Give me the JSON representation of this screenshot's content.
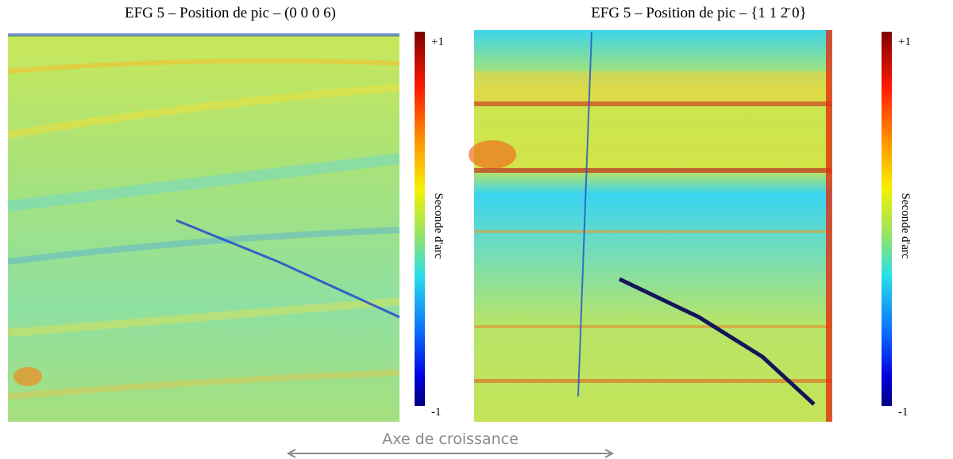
{
  "panels": [
    {
      "title": "EFG 5 – Position de pic – (0 0 0 6)",
      "colorbar": {
        "max_label": "+1",
        "min_label": "-1",
        "label": "Seconde d'arc"
      }
    },
    {
      "title": "EFG 5 – Position de pic – {1 1 2̄ 0}",
      "colorbar": {
        "max_label": "+1",
        "min_label": "-1",
        "label": "Seconde d'arc"
      }
    }
  ],
  "footer": {
    "label": "Axe de croissance"
  }
}
